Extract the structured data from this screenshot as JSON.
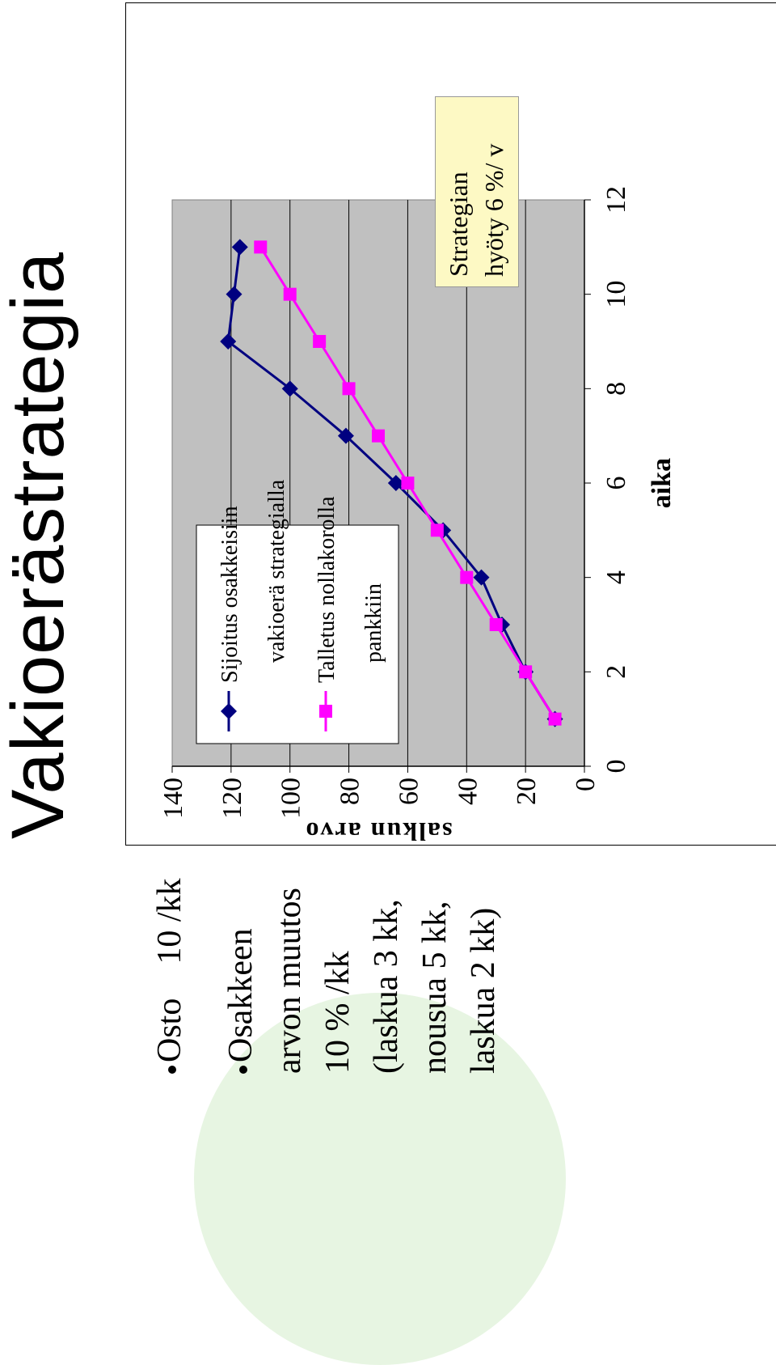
{
  "title": "Vakioerästrategia",
  "bullets": [
    "Osto    10 /kk",
    "Osakkeen",
    "arvon muutos",
    "10 % /kk",
    "(laskua 3 kk,",
    "nousua 5 kk,",
    "laskua 2 kk)"
  ],
  "note": {
    "line1": "Strategian",
    "line2": "hyöty 6 %/ v"
  },
  "chart_data": {
    "type": "line",
    "xlabel": "aika",
    "ylabel": "salkun arvo",
    "xlim": [
      0,
      12
    ],
    "ylim": [
      0,
      140
    ],
    "x_ticks": [
      "0",
      "2",
      "4",
      "6",
      "8",
      "10",
      "12"
    ],
    "y_ticks": [
      "0",
      "20",
      "40",
      "60",
      "80",
      "100",
      "120",
      "140"
    ],
    "grid": true,
    "legend_position": "inside",
    "x": [
      1,
      2,
      3,
      4,
      5,
      6,
      7,
      8,
      9,
      10,
      11
    ],
    "series": [
      {
        "name": "Sijoitus osakkeisiin vakioerä strategialla",
        "color": "#000080",
        "marker": "diamond",
        "values": [
          10,
          20,
          28,
          35,
          48,
          64,
          81,
          100,
          121,
          119,
          117
        ]
      },
      {
        "name": "Talletus nollakorolla pankkiin",
        "color": "#ff00ff",
        "marker": "square",
        "values": [
          10,
          20,
          30,
          40,
          50,
          60,
          70,
          80,
          90,
          100,
          110
        ]
      }
    ],
    "plot_bg": "#c0c0c0"
  }
}
